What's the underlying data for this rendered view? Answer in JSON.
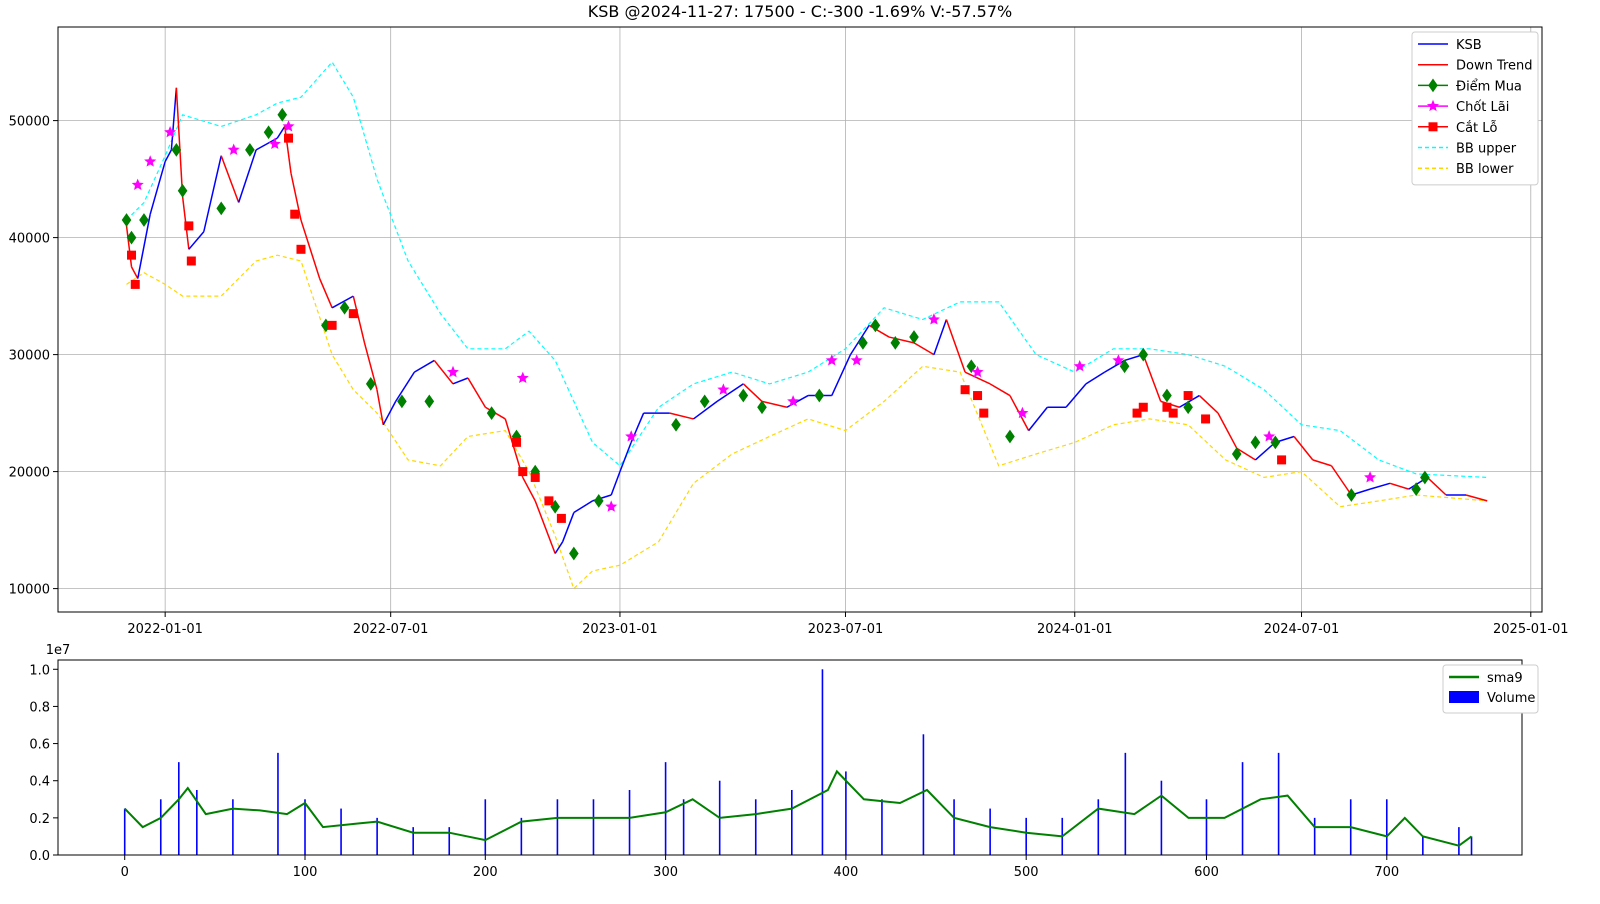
{
  "title": "KSB @2024-11-27: 17500 - C:-300 -1.69% V:-57.57%",
  "chart_data": [
    {
      "type": "line",
      "panel": "price",
      "title": "KSB @2024-11-27: 17500 - C:-300 -1.69% V:-57.57%",
      "x_ticks": [
        "2022-01-01",
        "2022-07-01",
        "2023-01-01",
        "2023-07-01",
        "2024-01-01",
        "2024-07-01",
        "2025-01-01"
      ],
      "y_ticks": [
        "10000",
        "20000",
        "30000",
        "40000",
        "50000"
      ],
      "xlim": [
        "2021-10-07",
        "2025-01-10"
      ],
      "ylim": [
        8000,
        58000
      ],
      "grid": true,
      "legend_position": "top-right",
      "legend": [
        "KSB",
        "Down Trend",
        "Điểm Mua",
        "Chốt Lãi",
        "Cắt Lỗ",
        "BB upper",
        "BB lower"
      ],
      "colors": {
        "price": "#0000ff",
        "down": "#ff0000",
        "buy": "#008000",
        "take_profit": "#ff00ff",
        "stop_loss": "#ff0000",
        "bb_upper": "#00ffff",
        "bb_lower": "#ffd700"
      },
      "series": [
        {
          "name": "KSB",
          "x": [
            "2021-12-01",
            "2021-12-05",
            "2021-12-10",
            "2021-12-20",
            "2022-01-01",
            "2022-01-06",
            "2022-01-10",
            "2022-01-15",
            "2022-01-20",
            "2022-02-01",
            "2022-02-15",
            "2022-03-01",
            "2022-03-15",
            "2022-04-01",
            "2022-04-07",
            "2022-04-12",
            "2022-04-20",
            "2022-05-05",
            "2022-05-15",
            "2022-06-01",
            "2022-06-10",
            "2022-06-20",
            "2022-06-25",
            "2022-07-05",
            "2022-07-20",
            "2022-08-05",
            "2022-08-20",
            "2022-09-01",
            "2022-09-15",
            "2022-10-01",
            "2022-10-15",
            "2022-10-25",
            "2022-11-10",
            "2022-11-16",
            "2022-11-25",
            "2022-12-10",
            "2022-12-25",
            "2023-01-01",
            "2023-01-10",
            "2023-01-20",
            "2023-02-10",
            "2023-03-01",
            "2023-03-20",
            "2023-04-10",
            "2023-04-25",
            "2023-05-15",
            "2023-06-01",
            "2023-06-20",
            "2023-07-05",
            "2023-07-20",
            "2023-08-05",
            "2023-08-25",
            "2023-09-10",
            "2023-09-20",
            "2023-10-05",
            "2023-10-25",
            "2023-11-10",
            "2023-11-25",
            "2023-12-10",
            "2023-12-25",
            "2024-01-10",
            "2024-01-25",
            "2024-02-10",
            "2024-02-25",
            "2024-03-10",
            "2024-03-25",
            "2024-04-10",
            "2024-04-25",
            "2024-05-10",
            "2024-05-25",
            "2024-06-10",
            "2024-06-25",
            "2024-07-10",
            "2024-07-25",
            "2024-08-10",
            "2024-08-25",
            "2024-09-10",
            "2024-09-25",
            "2024-10-10",
            "2024-10-25",
            "2024-11-10",
            "2024-11-27"
          ],
          "y": [
            41000,
            37500,
            36500,
            42000,
            46500,
            47500,
            52800,
            43500,
            39000,
            40500,
            47000,
            43000,
            47500,
            48500,
            49500,
            45500,
            41500,
            36500,
            34000,
            35000,
            31000,
            27000,
            24000,
            26000,
            28500,
            29500,
            27500,
            28000,
            25500,
            24500,
            19500,
            17500,
            13000,
            14000,
            16500,
            17500,
            18000,
            20000,
            22500,
            25000,
            25000,
            24500,
            26000,
            27500,
            26000,
            25500,
            26500,
            26500,
            30000,
            32500,
            31500,
            31000,
            30000,
            33000,
            28500,
            27500,
            26500,
            23500,
            25500,
            25500,
            27500,
            28500,
            29500,
            30000,
            26000,
            25500,
            26500,
            25000,
            22000,
            21000,
            22500,
            23000,
            21000,
            20500,
            18000,
            18500,
            19000,
            18500,
            19500,
            18000,
            18000,
            17500
          ]
        },
        {
          "name": "BB upper",
          "x": [
            "2021-12-01",
            "2021-12-15",
            "2022-01-01",
            "2022-01-15",
            "2022-02-15",
            "2022-03-15",
            "2022-04-01",
            "2022-04-20",
            "2022-05-15",
            "2022-06-01",
            "2022-06-20",
            "2022-07-15",
            "2022-08-10",
            "2022-09-01",
            "2022-10-01",
            "2022-10-20",
            "2022-11-10",
            "2022-12-10",
            "2023-01-01",
            "2023-02-01",
            "2023-03-01",
            "2023-04-01",
            "2023-05-01",
            "2023-06-01",
            "2023-07-01",
            "2023-08-01",
            "2023-09-01",
            "2023-10-01",
            "2023-11-01",
            "2023-12-01",
            "2024-01-01",
            "2024-02-01",
            "2024-03-01",
            "2024-04-01",
            "2024-05-01",
            "2024-06-01",
            "2024-07-01",
            "2024-08-01",
            "2024-09-01",
            "2024-10-01",
            "2024-11-27"
          ],
          "y": [
            41500,
            43000,
            47000,
            50500,
            49500,
            50500,
            51500,
            52000,
            55000,
            52000,
            45000,
            38000,
            33500,
            30500,
            30500,
            32000,
            29500,
            22500,
            20500,
            25500,
            27500,
            28500,
            27500,
            28500,
            30500,
            34000,
            33000,
            34500,
            34500,
            30000,
            28500,
            30500,
            30500,
            30000,
            29000,
            27000,
            24000,
            23500,
            21000,
            19800,
            19500
          ]
        },
        {
          "name": "BB lower",
          "x": [
            "2021-12-01",
            "2021-12-15",
            "2022-01-01",
            "2022-01-15",
            "2022-02-15",
            "2022-03-15",
            "2022-04-01",
            "2022-04-20",
            "2022-05-15",
            "2022-06-01",
            "2022-06-20",
            "2022-07-15",
            "2022-08-10",
            "2022-09-01",
            "2022-10-01",
            "2022-10-20",
            "2022-11-10",
            "2022-11-25",
            "2022-12-10",
            "2023-01-01",
            "2023-02-01",
            "2023-03-01",
            "2023-04-01",
            "2023-05-01",
            "2023-06-01",
            "2023-07-01",
            "2023-08-01",
            "2023-09-01",
            "2023-10-01",
            "2023-11-01",
            "2023-12-01",
            "2024-01-01",
            "2024-02-01",
            "2024-03-01",
            "2024-04-01",
            "2024-05-01",
            "2024-06-01",
            "2024-07-01",
            "2024-08-01",
            "2024-09-01",
            "2024-10-01",
            "2024-11-27"
          ],
          "y": [
            36000,
            37000,
            36000,
            35000,
            35000,
            38000,
            38500,
            38000,
            30000,
            27000,
            25000,
            21000,
            20500,
            23000,
            23500,
            20000,
            14500,
            10000,
            11500,
            12000,
            14000,
            19000,
            21500,
            23000,
            24500,
            23500,
            26000,
            29000,
            28500,
            20500,
            21500,
            22500,
            24000,
            24500,
            24000,
            21000,
            19500,
            20000,
            17000,
            17500,
            18000,
            17500
          ]
        },
        {
          "name": "Điểm Mua",
          "x": [
            "2021-12-01",
            "2021-12-05",
            "2021-12-15",
            "2022-01-10",
            "2022-01-15",
            "2022-02-15",
            "2022-03-10",
            "2022-03-25",
            "2022-04-05",
            "2022-05-10",
            "2022-05-25",
            "2022-06-15",
            "2022-07-10",
            "2022-08-01",
            "2022-09-20",
            "2022-10-10",
            "2022-10-25",
            "2022-11-10",
            "2022-11-25",
            "2022-12-15",
            "2023-02-15",
            "2023-03-10",
            "2023-04-10",
            "2023-04-25",
            "2023-06-10",
            "2023-07-15",
            "2023-07-25",
            "2023-08-10",
            "2023-08-25",
            "2023-10-10",
            "2023-11-10",
            "2024-02-10",
            "2024-02-25",
            "2024-03-15",
            "2024-04-01",
            "2024-05-10",
            "2024-05-25",
            "2024-06-10",
            "2024-08-10",
            "2024-10-01",
            "2024-10-08"
          ],
          "y": [
            41500,
            40000,
            41500,
            47500,
            44000,
            42500,
            47500,
            49000,
            50500,
            32500,
            34000,
            27500,
            26000,
            26000,
            25000,
            23000,
            20000,
            17000,
            13000,
            17500,
            24000,
            26000,
            26500,
            25500,
            26500,
            31000,
            32500,
            31000,
            31500,
            29000,
            23000,
            29000,
            30000,
            26500,
            25500,
            21500,
            22500,
            22500,
            18000,
            18500,
            19500
          ]
        },
        {
          "name": "Chốt Lãi",
          "x": [
            "2021-12-10",
            "2021-12-20",
            "2022-01-05",
            "2022-02-25",
            "2022-03-30",
            "2022-04-10",
            "2022-08-20",
            "2022-10-15",
            "2022-12-25",
            "2023-01-10",
            "2023-03-25",
            "2023-05-20",
            "2023-06-20",
            "2023-07-10",
            "2023-09-10",
            "2023-10-15",
            "2023-11-20",
            "2024-01-05",
            "2024-02-05",
            "2024-06-05",
            "2024-08-25"
          ],
          "y": [
            44500,
            46500,
            49000,
            47500,
            48000,
            49500,
            28500,
            28000,
            17000,
            23000,
            27000,
            26000,
            29500,
            29500,
            33000,
            28500,
            25000,
            29000,
            29500,
            23000,
            19500
          ]
        },
        {
          "name": "Cắt Lỗ",
          "x": [
            "2021-12-05",
            "2021-12-08",
            "2022-01-20",
            "2022-01-22",
            "2022-04-10",
            "2022-04-15",
            "2022-04-20",
            "2022-05-15",
            "2022-06-01",
            "2022-10-10",
            "2022-10-15",
            "2022-10-25",
            "2022-11-05",
            "2022-11-15",
            "2023-10-05",
            "2023-10-15",
            "2023-10-20",
            "2024-02-20",
            "2024-02-25",
            "2024-03-15",
            "2024-03-20",
            "2024-04-01",
            "2024-04-15",
            "2024-06-15"
          ],
          "y": [
            38500,
            36000,
            41000,
            38000,
            48500,
            42000,
            39000,
            32500,
            33500,
            22500,
            20000,
            19500,
            17500,
            16000,
            27000,
            26500,
            25000,
            25000,
            25500,
            25500,
            25000,
            26500,
            24500,
            21000
          ]
        }
      ]
    },
    {
      "type": "bar",
      "panel": "volume",
      "x_ticks": [
        "0",
        "100",
        "200",
        "300",
        "400",
        "500",
        "600",
        "700"
      ],
      "y_ticks": [
        "0.0",
        "0.2",
        "0.4",
        "0.6",
        "0.8",
        "1.0"
      ],
      "y_offset_label": "1e7",
      "xlim": [
        -37,
        775
      ],
      "ylim": [
        0,
        1.05
      ],
      "legend_position": "top-right",
      "legend": [
        "sma9",
        "Volume"
      ],
      "colors": {
        "volume": "#0000ff",
        "sma9": "#008000"
      },
      "series": [
        {
          "name": "Volume",
          "x": [
            0,
            20,
            30,
            40,
            60,
            85,
            100,
            120,
            140,
            160,
            180,
            200,
            220,
            240,
            260,
            280,
            300,
            310,
            330,
            350,
            370,
            387,
            400,
            420,
            443,
            460,
            480,
            500,
            520,
            540,
            555,
            575,
            600,
            620,
            640,
            660,
            680,
            700,
            720,
            740,
            747
          ],
          "values": [
            0.25,
            0.3,
            0.5,
            0.35,
            0.3,
            0.55,
            0.3,
            0.25,
            0.2,
            0.15,
            0.15,
            0.3,
            0.2,
            0.3,
            0.3,
            0.35,
            0.5,
            0.3,
            0.4,
            0.3,
            0.35,
            1.0,
            0.45,
            0.3,
            0.65,
            0.3,
            0.25,
            0.2,
            0.2,
            0.3,
            0.55,
            0.4,
            0.3,
            0.5,
            0.55,
            0.2,
            0.3,
            0.3,
            0.1,
            0.15,
            0.1
          ]
        },
        {
          "name": "sma9",
          "x": [
            0,
            10,
            20,
            30,
            35,
            45,
            60,
            75,
            90,
            100,
            110,
            130,
            140,
            160,
            180,
            200,
            220,
            240,
            260,
            280,
            300,
            315,
            330,
            350,
            370,
            390,
            395,
            410,
            430,
            445,
            460,
            480,
            500,
            520,
            540,
            560,
            575,
            590,
            610,
            630,
            645,
            660,
            680,
            700,
            710,
            720,
            740,
            747
          ],
          "values": [
            0.25,
            0.15,
            0.2,
            0.3,
            0.36,
            0.22,
            0.25,
            0.24,
            0.22,
            0.28,
            0.15,
            0.17,
            0.18,
            0.12,
            0.12,
            0.08,
            0.18,
            0.2,
            0.2,
            0.2,
            0.23,
            0.3,
            0.2,
            0.22,
            0.25,
            0.35,
            0.45,
            0.3,
            0.28,
            0.35,
            0.2,
            0.15,
            0.12,
            0.1,
            0.25,
            0.22,
            0.32,
            0.2,
            0.2,
            0.3,
            0.32,
            0.15,
            0.15,
            0.1,
            0.2,
            0.1,
            0.05,
            0.1
          ]
        }
      ]
    }
  ]
}
